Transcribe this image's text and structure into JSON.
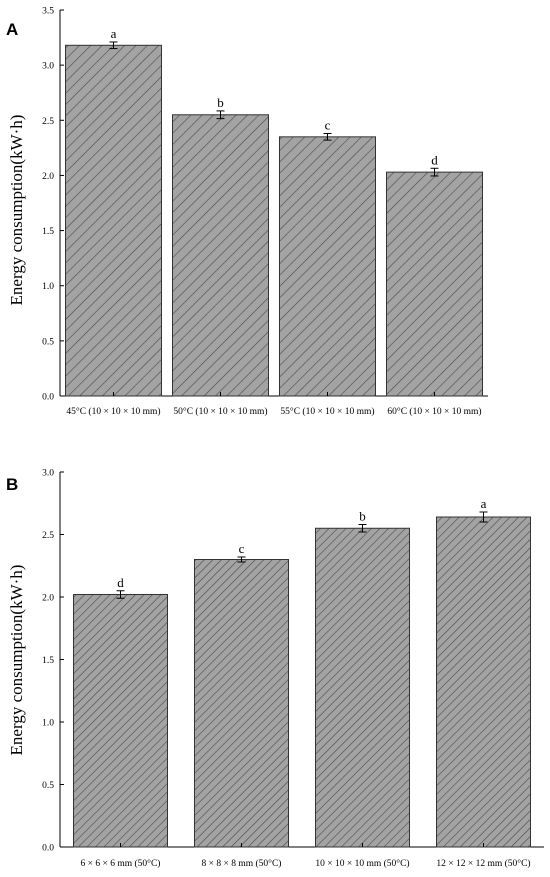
{
  "chart_data": [
    {
      "panel": "A",
      "type": "bar",
      "title": "",
      "xlabel": "",
      "ylabel": "Energy consumption(kW·h)",
      "ylim": [
        0,
        3.5
      ],
      "yticks": [
        "0.0",
        "0.5",
        "1.0",
        "1.5",
        "2.0",
        "2.5",
        "3.0",
        "3.5"
      ],
      "grid": false,
      "bar_color": "#9a9a9a",
      "hatch": "diagonal",
      "categories": [
        "45°C (10 × 10 × 10 mm)",
        "50°C (10 × 10 × 10 mm)",
        "55°C (10 × 10 × 10 mm)",
        "60°C (10 × 10 × 10 mm)"
      ],
      "values": [
        3.18,
        2.55,
        2.35,
        2.03
      ],
      "errors": [
        0.03,
        0.035,
        0.03,
        0.035
      ],
      "significance": [
        "a",
        "b",
        "c",
        "d"
      ]
    },
    {
      "panel": "B",
      "type": "bar",
      "title": "",
      "xlabel": "",
      "ylabel": "Energy consumption(kW·h)",
      "ylim": [
        0,
        3.0
      ],
      "yticks": [
        "0.0",
        "0.5",
        "1.0",
        "1.5",
        "2.0",
        "2.5",
        "3.0"
      ],
      "grid": false,
      "bar_color": "#9a9a9a",
      "hatch": "diagonal",
      "categories": [
        "6 × 6 × 6 mm (50°C)",
        "8 × 8 × 8 mm (50°C)",
        "10 × 10 × 10 mm (50°C)",
        "12 × 12 × 12 mm (50°C)"
      ],
      "values": [
        2.02,
        2.3,
        2.55,
        2.64
      ],
      "errors": [
        0.03,
        0.02,
        0.03,
        0.04
      ],
      "significance": [
        "d",
        "c",
        "b",
        "a"
      ]
    }
  ]
}
